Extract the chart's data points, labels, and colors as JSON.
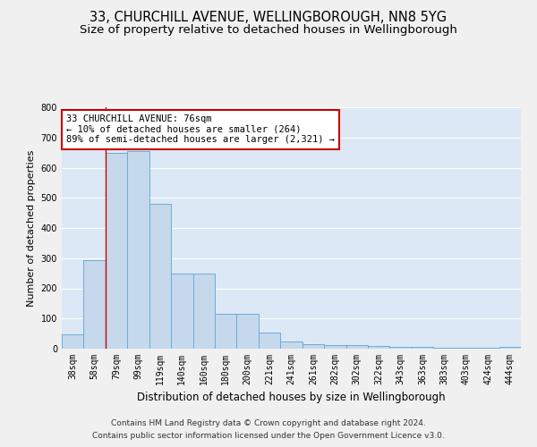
{
  "title1": "33, CHURCHILL AVENUE, WELLINGBOROUGH, NN8 5YG",
  "title2": "Size of property relative to detached houses in Wellingborough",
  "xlabel": "Distribution of detached houses by size in Wellingborough",
  "ylabel": "Number of detached properties",
  "categories": [
    "38sqm",
    "58sqm",
    "79sqm",
    "99sqm",
    "119sqm",
    "140sqm",
    "160sqm",
    "180sqm",
    "200sqm",
    "221sqm",
    "241sqm",
    "261sqm",
    "282sqm",
    "302sqm",
    "322sqm",
    "343sqm",
    "363sqm",
    "383sqm",
    "403sqm",
    "424sqm",
    "444sqm"
  ],
  "values": [
    47,
    293,
    650,
    655,
    480,
    248,
    248,
    115,
    115,
    52,
    25,
    15,
    13,
    13,
    8,
    5,
    5,
    3,
    3,
    2,
    7
  ],
  "bar_color": "#c5d8ec",
  "bar_edge_color": "#6baed6",
  "annotation_text": "33 CHURCHILL AVENUE: 76sqm\n← 10% of detached houses are smaller (264)\n89% of semi-detached houses are larger (2,321) →",
  "annotation_box_color": "#ffffff",
  "annotation_box_edge_color": "#cc0000",
  "vline_color": "#cc0000",
  "vline_x": 1.5,
  "ylim": [
    0,
    800
  ],
  "yticks": [
    0,
    100,
    200,
    300,
    400,
    500,
    600,
    700,
    800
  ],
  "plot_bg_color": "#dce8f5",
  "fig_bg_color": "#f0f0f0",
  "grid_color": "#ffffff",
  "footer_line1": "Contains HM Land Registry data © Crown copyright and database right 2024.",
  "footer_line2": "Contains public sector information licensed under the Open Government Licence v3.0.",
  "title1_fontsize": 10.5,
  "title2_fontsize": 9.5,
  "xlabel_fontsize": 8.5,
  "ylabel_fontsize": 8,
  "tick_fontsize": 7,
  "annotation_fontsize": 7.5,
  "footer_fontsize": 6.5
}
